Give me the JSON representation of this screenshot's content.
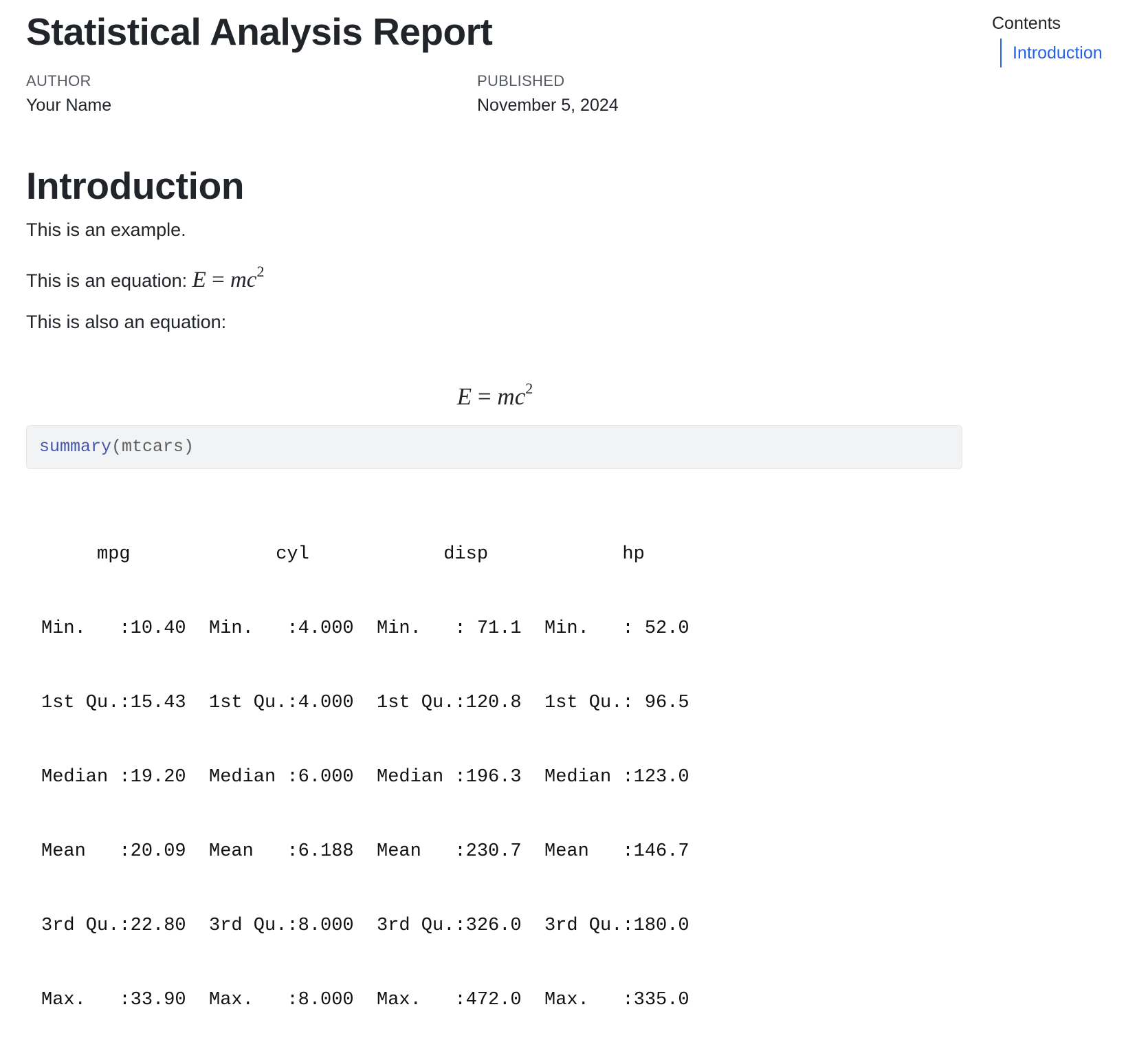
{
  "document": {
    "title": "Statistical Analysis Report",
    "author_heading": "AUTHOR",
    "author": "Your Name",
    "published_heading": "PUBLISHED",
    "published": "November 5, 2024"
  },
  "section": {
    "heading": "Introduction",
    "para1": "This is an example.",
    "para2_prefix": "This is an equation: ",
    "para3": "This is also an equation:",
    "equation": {
      "lhs": "E",
      "eq": " = ",
      "m": "m",
      "c": "c",
      "exp": "2"
    }
  },
  "code": {
    "function": "summary",
    "args": "(mtcars)"
  },
  "output": {
    "headers": [
      "     mpg      ",
      "      cyl     ",
      "      disp    ",
      "       hp     "
    ],
    "rows": [
      [
        "Min.   :10.40  ",
        "Min.   :4.000  ",
        "Min.   : 71.1  ",
        "Min.   : 52.0  "
      ],
      [
        "1st Qu.:15.43  ",
        "1st Qu.:4.000  ",
        "1st Qu.:120.8  ",
        "1st Qu.: 96.5  "
      ],
      [
        "Median :19.20  ",
        "Median :6.000  ",
        "Median :196.3  ",
        "Median :123.0  "
      ],
      [
        "Mean   :20.09  ",
        "Mean   :6.188  ",
        "Mean   :230.7  ",
        "Mean   :146.7  "
      ],
      [
        "3rd Qu.:22.80  ",
        "3rd Qu.:8.000  ",
        "3rd Qu.:326.0  ",
        "3rd Qu.:180.0  "
      ],
      [
        "Max.   :33.90  ",
        "Max.   :8.000  ",
        "Max.   :472.0  ",
        "Max.   :335.0  "
      ]
    ]
  },
  "toc": {
    "title": "Contents",
    "items": [
      "Introduction"
    ]
  },
  "colors": {
    "accent": "#2761e3",
    "code_background": "#f1f3f5",
    "code_function": "#4758ab"
  }
}
